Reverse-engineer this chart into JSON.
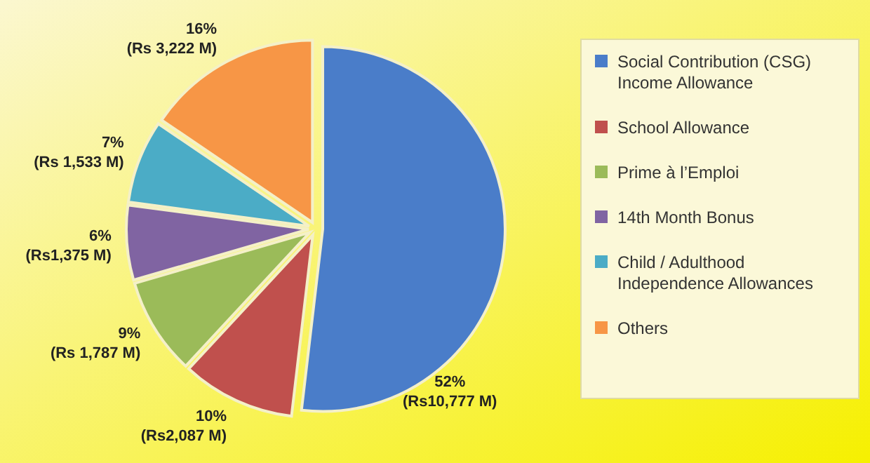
{
  "chart_data": {
    "type": "pie",
    "categories": [
      "Social Contribution (CSG) Income Allowance",
      "School Allowance",
      "Prime à l’Emploi",
      "14th Month Bonus",
      "Child / Adulthood Independence Allowances",
      "Others"
    ],
    "values": [
      10777,
      2087,
      1787,
      1375,
      1533,
      3222
    ],
    "colors": [
      "#4a7dc9",
      "#c0504d",
      "#9bbb59",
      "#8064a2",
      "#4bacc6",
      "#f79646"
    ],
    "value_labels": [
      "52%\n(Rs10,777 M)",
      "10%\n(Rs2,087 M)",
      "9%\n(Rs 1,787 M)",
      "6%\n(Rs1,375 M)",
      "7%\n(Rs 1,533 M)",
      "16%\n(Rs 3,222 M)"
    ],
    "legend": "right"
  }
}
